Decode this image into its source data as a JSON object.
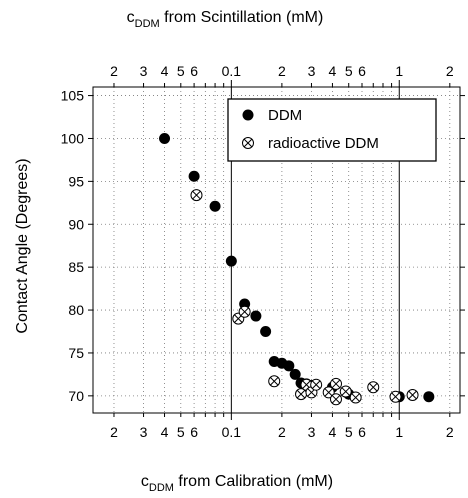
{
  "chart_data": {
    "type": "scatter",
    "x_scale": "log",
    "xlim": [
      0.015,
      2.3
    ],
    "ylim": [
      68,
      106
    ],
    "grid": true,
    "legend_position": "top-right",
    "top_axis": {
      "label_prefix": "c",
      "label_subscript": "DDM",
      "label_suffix": " from Scintillation (mM)",
      "ticks": [
        {
          "value": 0.02,
          "label": "2"
        },
        {
          "value": 0.03,
          "label": "3"
        },
        {
          "value": 0.04,
          "label": "4"
        },
        {
          "value": 0.05,
          "label": "5"
        },
        {
          "value": 0.06,
          "label": "6"
        },
        {
          "value": 0.1,
          "label": "0.1"
        },
        {
          "value": 0.2,
          "label": "2"
        },
        {
          "value": 0.3,
          "label": "3"
        },
        {
          "value": 0.4,
          "label": "4"
        },
        {
          "value": 0.5,
          "label": "5"
        },
        {
          "value": 0.6,
          "label": "6"
        },
        {
          "value": 1,
          "label": "1"
        },
        {
          "value": 2,
          "label": "2"
        }
      ]
    },
    "bottom_axis": {
      "label_prefix": "c",
      "label_subscript": "DDM",
      "label_suffix": " from Calibration (mM)",
      "ticks": [
        {
          "value": 0.02,
          "label": "2"
        },
        {
          "value": 0.03,
          "label": "3"
        },
        {
          "value": 0.04,
          "label": "4"
        },
        {
          "value": 0.05,
          "label": "5"
        },
        {
          "value": 0.06,
          "label": "6"
        },
        {
          "value": 0.1,
          "label": "0.1"
        },
        {
          "value": 0.2,
          "label": "2"
        },
        {
          "value": 0.3,
          "label": "3"
        },
        {
          "value": 0.4,
          "label": "4"
        },
        {
          "value": 0.5,
          "label": "5"
        },
        {
          "value": 0.6,
          "label": "6"
        },
        {
          "value": 1,
          "label": "1"
        },
        {
          "value": 2,
          "label": "2"
        }
      ]
    },
    "y_axis": {
      "label": "Contact Angle (Degrees)",
      "ticks": [
        70,
        75,
        80,
        85,
        90,
        95,
        100,
        105
      ]
    },
    "series": [
      {
        "name": "DDM",
        "marker": "filled-circle",
        "color": "#000000",
        "points": [
          {
            "x": 0.04,
            "y": 100.0
          },
          {
            "x": 0.06,
            "y": 95.6
          },
          {
            "x": 0.08,
            "y": 92.1
          },
          {
            "x": 0.1,
            "y": 85.7
          },
          {
            "x": 0.12,
            "y": 80.7
          },
          {
            "x": 0.14,
            "y": 79.3
          },
          {
            "x": 0.16,
            "y": 77.5
          },
          {
            "x": 0.18,
            "y": 74.0
          },
          {
            "x": 0.2,
            "y": 73.8
          },
          {
            "x": 0.22,
            "y": 73.5
          },
          {
            "x": 0.24,
            "y": 72.5
          },
          {
            "x": 0.26,
            "y": 71.5
          },
          {
            "x": 0.28,
            "y": 71.4
          },
          {
            "x": 0.3,
            "y": 71.2
          },
          {
            "x": 0.4,
            "y": 71.0
          },
          {
            "x": 0.5,
            "y": 70.2
          },
          {
            "x": 1.0,
            "y": 69.9
          },
          {
            "x": 1.5,
            "y": 69.9
          }
        ]
      },
      {
        "name": "radioactive DDM",
        "marker": "crossed-circle",
        "color": "#000000",
        "points": [
          {
            "x": 0.062,
            "y": 93.4
          },
          {
            "x": 0.11,
            "y": 79.0
          },
          {
            "x": 0.12,
            "y": 79.8
          },
          {
            "x": 0.18,
            "y": 71.7
          },
          {
            "x": 0.26,
            "y": 70.2
          },
          {
            "x": 0.28,
            "y": 71.3
          },
          {
            "x": 0.3,
            "y": 70.4
          },
          {
            "x": 0.32,
            "y": 71.3
          },
          {
            "x": 0.38,
            "y": 70.4
          },
          {
            "x": 0.42,
            "y": 71.4
          },
          {
            "x": 0.42,
            "y": 69.6
          },
          {
            "x": 0.48,
            "y": 70.5
          },
          {
            "x": 0.55,
            "y": 69.8
          },
          {
            "x": 0.7,
            "y": 71.0
          },
          {
            "x": 0.95,
            "y": 69.9
          },
          {
            "x": 1.2,
            "y": 70.1
          }
        ]
      }
    ]
  }
}
